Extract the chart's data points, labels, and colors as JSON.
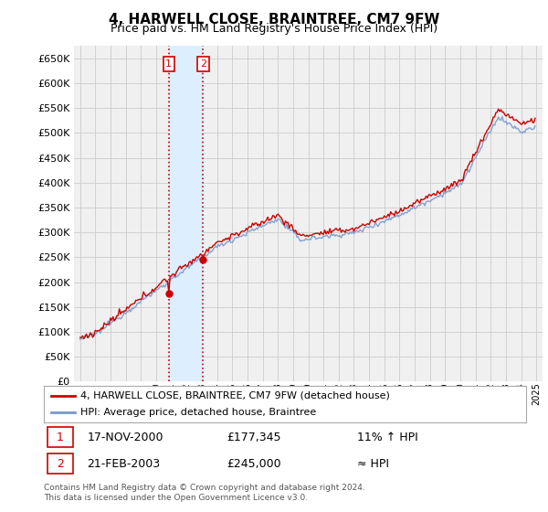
{
  "title": "4, HARWELL CLOSE, BRAINTREE, CM7 9FW",
  "subtitle": "Price paid vs. HM Land Registry's House Price Index (HPI)",
  "legend_line1": "4, HARWELL CLOSE, BRAINTREE, CM7 9FW (detached house)",
  "legend_line2": "HPI: Average price, detached house, Braintree",
  "transaction1_date": "17-NOV-2000",
  "transaction1_price": "£177,345",
  "transaction1_note": "11% ↑ HPI",
  "transaction2_date": "21-FEB-2003",
  "transaction2_price": "£245,000",
  "transaction2_note": "≈ HPI",
  "footer": "Contains HM Land Registry data © Crown copyright and database right 2024.\nThis data is licensed under the Open Government Licence v3.0.",
  "hpi_color": "#7799cc",
  "price_color": "#cc0000",
  "vline_color": "#cc0000",
  "highlight_color": "#ddeeff",
  "ylim": [
    0,
    675000
  ],
  "yticks": [
    0,
    50000,
    100000,
    150000,
    200000,
    250000,
    300000,
    350000,
    400000,
    450000,
    500000,
    550000,
    600000,
    650000
  ],
  "background_color": "#f0f0f0",
  "grid_color": "#cccccc",
  "figwidth": 6.0,
  "figheight": 5.6,
  "dpi": 100
}
